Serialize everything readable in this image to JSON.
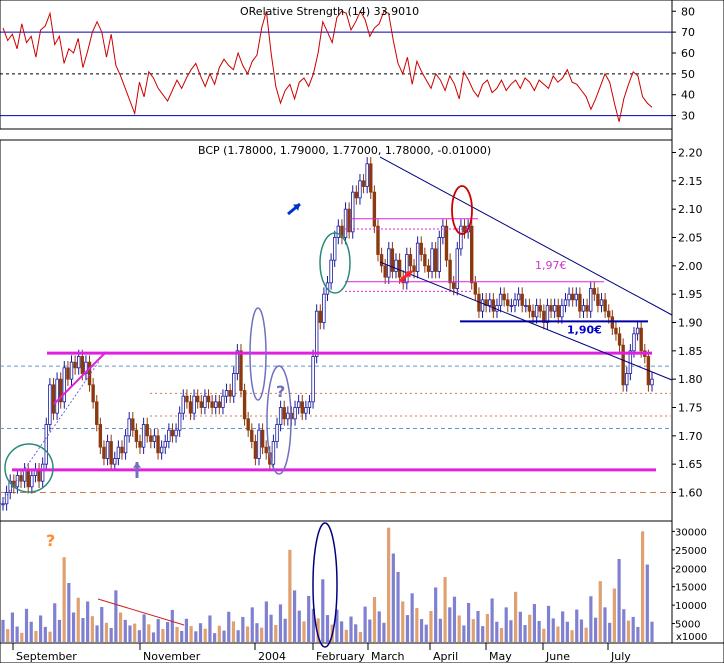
{
  "chart_data": [
    {
      "panel": "indicator",
      "type": "line",
      "title": "ORelative Strength (14) 33.9010",
      "yticks": [
        30,
        40,
        50,
        60,
        70,
        80
      ],
      "ylim": [
        25,
        83
      ],
      "reference_levels": {
        "upper": 70,
        "middle": 50,
        "lower": 30
      },
      "series": [
        {
          "color": "#cc0000",
          "values": [
            72,
            66,
            69,
            62,
            74,
            65,
            68,
            58,
            71,
            73,
            79,
            64,
            68,
            55,
            62,
            60,
            67,
            53,
            61,
            70,
            75,
            70,
            58,
            69,
            54,
            49,
            43,
            37,
            31,
            46,
            39,
            51,
            48,
            43,
            40,
            37,
            42,
            47,
            43,
            48,
            52,
            55,
            49,
            44,
            50,
            45,
            53,
            57,
            54,
            52,
            60,
            54,
            50,
            56,
            59,
            72,
            80,
            60,
            44,
            36,
            42,
            45,
            38,
            46,
            48,
            44,
            50,
            60,
            75,
            70,
            65,
            77,
            80,
            79,
            71,
            75,
            80,
            76,
            68,
            72,
            74,
            80,
            79,
            66,
            55,
            50,
            58,
            45,
            56,
            51,
            47,
            43,
            50,
            47,
            42,
            49,
            45,
            38,
            51,
            47,
            42,
            39,
            45,
            47,
            41,
            43,
            47,
            42,
            45,
            47,
            43,
            48,
            46,
            42,
            47,
            45,
            43,
            49,
            46,
            48,
            52,
            46,
            45,
            42,
            39,
            33,
            38,
            44,
            50,
            46,
            36,
            27,
            38,
            45,
            51,
            49,
            39,
            36,
            34
          ]
        }
      ]
    },
    {
      "panel": "price",
      "type": "candlestick",
      "title": "BCP (1.78000, 1.79000, 1.77000, 1.78000, -0.01000)",
      "yticks": [
        1.6,
        1.65,
        1.7,
        1.75,
        1.8,
        1.85,
        1.9,
        1.95,
        2.0,
        2.05,
        2.1,
        2.15,
        2.2
      ],
      "ylim": [
        1.555,
        2.215
      ],
      "series": [
        {
          "color": "#8b3a0f",
          "values": [
            1.58,
            1.6,
            1.62,
            1.61,
            1.63,
            1.62,
            1.64,
            1.61,
            1.63,
            1.64,
            1.62,
            1.65,
            1.72,
            1.79,
            1.74,
            1.8,
            1.76,
            1.82,
            1.8,
            1.83,
            1.82,
            1.84,
            1.81,
            1.83,
            1.79,
            1.76,
            1.72,
            1.68,
            1.66,
            1.69,
            1.65,
            1.66,
            1.68,
            1.67,
            1.7,
            1.73,
            1.71,
            1.69,
            1.68,
            1.72,
            1.7,
            1.69,
            1.7,
            1.67,
            1.68,
            1.69,
            1.71,
            1.7,
            1.71,
            1.74,
            1.77,
            1.76,
            1.74,
            1.77,
            1.76,
            1.75,
            1.77,
            1.76,
            1.75,
            1.76,
            1.75,
            1.77,
            1.78,
            1.77,
            1.81,
            1.85,
            1.78,
            1.73,
            1.71,
            1.69,
            1.66,
            1.71,
            1.68,
            1.67,
            1.65,
            1.69,
            1.72,
            1.75,
            1.73,
            1.74,
            1.73,
            1.75,
            1.76,
            1.74,
            1.75,
            1.76,
            1.84,
            1.92,
            1.9,
            1.95,
            1.97,
            2.01,
            2.05,
            2.07,
            2.05,
            2.1,
            2.06,
            2.13,
            2.12,
            2.15,
            2.14,
            2.18,
            2.13,
            2.07,
            2.02,
            2.0,
            1.98,
            2.03,
            1.99,
            2.01,
            1.98,
            1.97,
            2.02,
            2.0,
            1.99,
            2.04,
            2.02,
            2.0,
            1.99,
            2.03,
            1.99,
            2.05,
            2.07,
            2.01,
            1.97,
            1.96,
            2.03,
            2.07,
            2.06,
            2.07,
            1.97,
            1.95,
            1.92,
            1.94,
            1.93,
            1.94,
            1.92,
            1.93,
            1.95,
            1.94,
            1.93,
            1.93,
            1.94,
            1.95,
            1.93,
            1.93,
            1.92,
            1.91,
            1.93,
            1.92,
            1.9,
            1.93,
            1.92,
            1.93,
            1.91,
            1.93,
            1.94,
            1.95,
            1.94,
            1.95,
            1.92,
            1.93,
            1.92,
            1.96,
            1.95,
            1.93,
            1.94,
            1.92,
            1.91,
            1.89,
            1.88,
            1.86,
            1.79,
            1.81,
            1.85,
            1.88,
            1.89,
            1.85,
            1.84,
            1.79,
            1.8
          ]
        }
      ],
      "annotations": [
        {
          "text": "1,97€",
          "color": "#cc33cc",
          "value": 1.97
        },
        {
          "text": "1,90€",
          "color": "#0000cc",
          "value": 1.905
        },
        {
          "text": "?",
          "color": "#7070c0"
        }
      ],
      "horizontal_lines": [
        {
          "color": "#e020e0",
          "value": 1.846
        },
        {
          "color": "#e020e0",
          "value": 1.64
        },
        {
          "color": "#0000aa",
          "value": 1.902
        },
        {
          "color": "#e020e0",
          "value": 1.972
        },
        {
          "color": "#e020e0",
          "value": 2.083
        }
      ]
    },
    {
      "panel": "volume",
      "type": "bar",
      "yticks": [
        5000,
        10000,
        15000,
        20000,
        25000,
        30000
      ],
      "ylim": [
        0,
        32000
      ],
      "unit_label": "x1000",
      "annotations": [
        {
          "text": "?",
          "color": "#ff8c33"
        }
      ],
      "series": [
        {
          "color": "#8080d0",
          "values": [
            6000,
            3500,
            8000,
            4200,
            2500,
            9000,
            5500,
            3000,
            7200,
            4100,
            2800,
            10500,
            6000,
            23000,
            16000,
            8000,
            12000,
            6500,
            11000,
            7000,
            4500,
            9500,
            5200,
            3800,
            14000,
            8000,
            6000,
            4500,
            5000,
            3200,
            7500,
            4800,
            2600,
            6200,
            3500,
            5400,
            8700,
            4100,
            3000,
            6300,
            4300,
            2900,
            5100,
            3600,
            7200,
            2400,
            4400,
            3100,
            8200,
            5600,
            3200,
            6800,
            4200,
            9400,
            5100,
            3900,
            11000,
            7400,
            4600,
            10200,
            6300,
            25000,
            14000,
            8500,
            5600,
            12500,
            9000,
            6400,
            17000,
            7300,
            4700,
            8800,
            5600,
            3300,
            6900,
            4800,
            2700,
            9600,
            6100,
            12200,
            8300,
            5200,
            31000,
            24000,
            19000,
            11000,
            7300,
            13200,
            9200,
            6200,
            4700,
            8400,
            14800,
            6300,
            17600,
            9400,
            12300,
            7200,
            4500,
            10600,
            6200,
            8400,
            4300,
            7600,
            11800,
            5500,
            3800,
            9400,
            5900,
            13600,
            8200,
            4600,
            7400,
            10300,
            5700,
            3600,
            9800,
            6400,
            4200,
            8300,
            5500,
            3200,
            8800,
            6100,
            3900,
            12400,
            6600,
            16500,
            9400,
            5200,
            14500,
            22500,
            8900,
            5800,
            6800,
            4100,
            30000,
            21000,
            5500
          ]
        }
      ],
      "trendline": {
        "color": "#cc2222"
      }
    }
  ],
  "x_axis": {
    "labels": [
      "September",
      "November",
      "2004",
      "February",
      "March",
      "April",
      "May",
      "June",
      "July"
    ]
  }
}
